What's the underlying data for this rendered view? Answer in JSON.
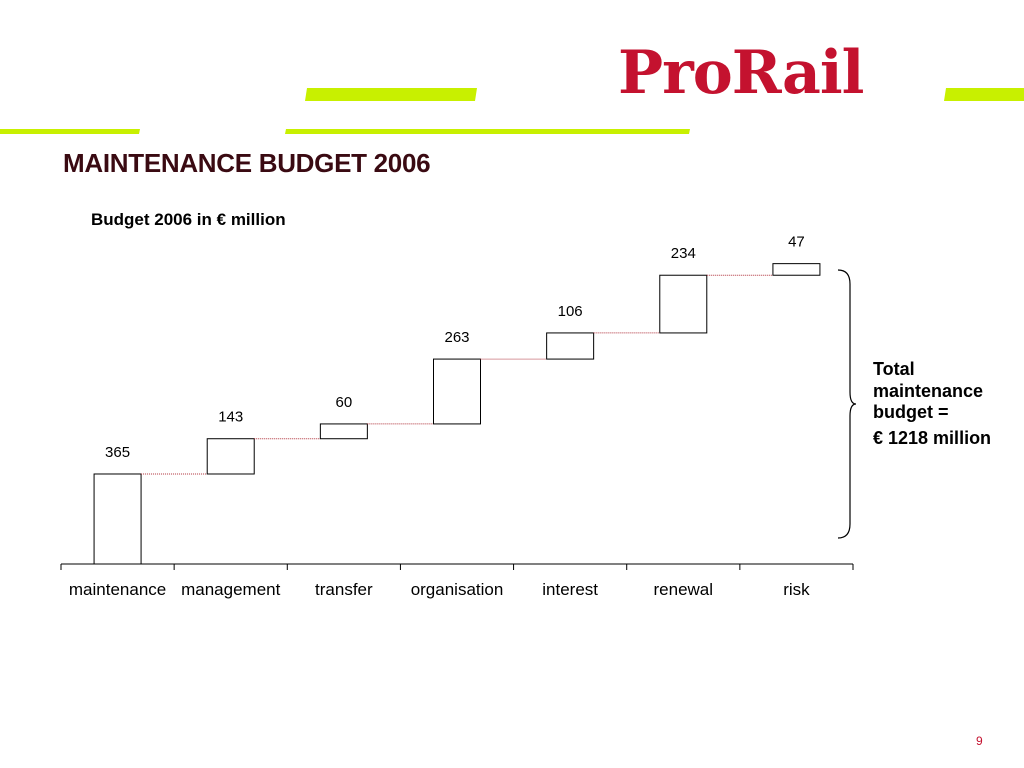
{
  "brand": {
    "logo_text": "ProRail",
    "logo_color": "#c4122f",
    "accent_color": "#c8f000"
  },
  "slide": {
    "title": "MAINTENANCE BUDGET 2006",
    "subtitle": "Budget 2006 in € million",
    "total_line1": "Total maintenance budget =",
    "total_line2": "€ 1218 million",
    "page_number": "9"
  },
  "chart_data": {
    "type": "bar",
    "subtype": "waterfall",
    "title": "Budget 2006 in € million",
    "xlabel": "",
    "ylabel": "",
    "categories": [
      "maintenance",
      "management",
      "transfer",
      "organisation",
      "interest",
      "renewal",
      "risk"
    ],
    "values": [
      365,
      143,
      60,
      263,
      106,
      234,
      47
    ],
    "total": 1218,
    "total_label": "€ 1218 million",
    "grid": false,
    "legend": "none",
    "bar_fill": "#ffffff",
    "bar_stroke": "#000000",
    "connector_color": "#b0303a"
  }
}
